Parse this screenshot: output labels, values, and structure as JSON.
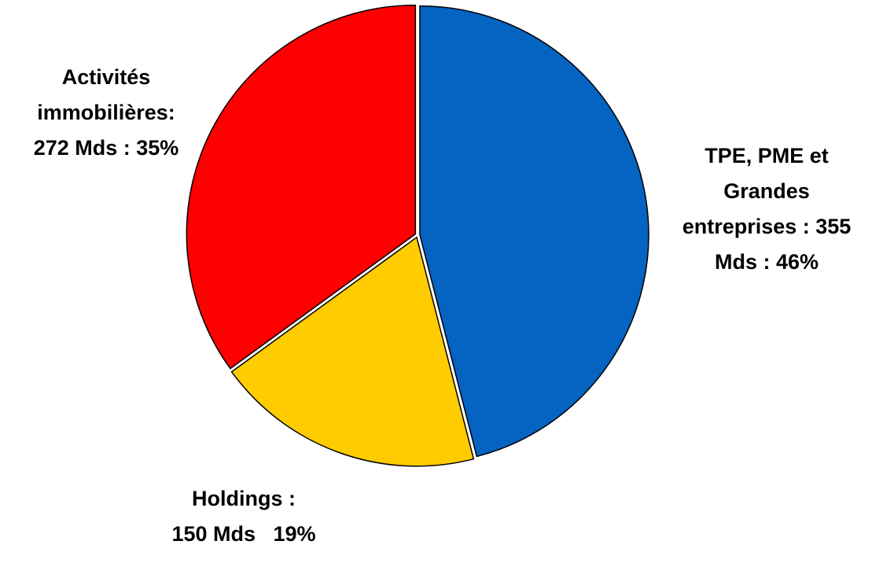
{
  "chart_data": {
    "type": "pie",
    "values": [
      46,
      19,
      35
    ],
    "value_labels": [
      [
        "TPE, PME et",
        "Grandes",
        "entreprises : 355",
        "Mds : 46%"
      ],
      [
        "Holdings :",
        "150 Mds   19%"
      ],
      [
        "Activités",
        "immobilières:",
        "272 Mds : 35%"
      ]
    ],
    "colors": [
      "#0563c1",
      "#ffcc00",
      "#ff0000"
    ]
  }
}
